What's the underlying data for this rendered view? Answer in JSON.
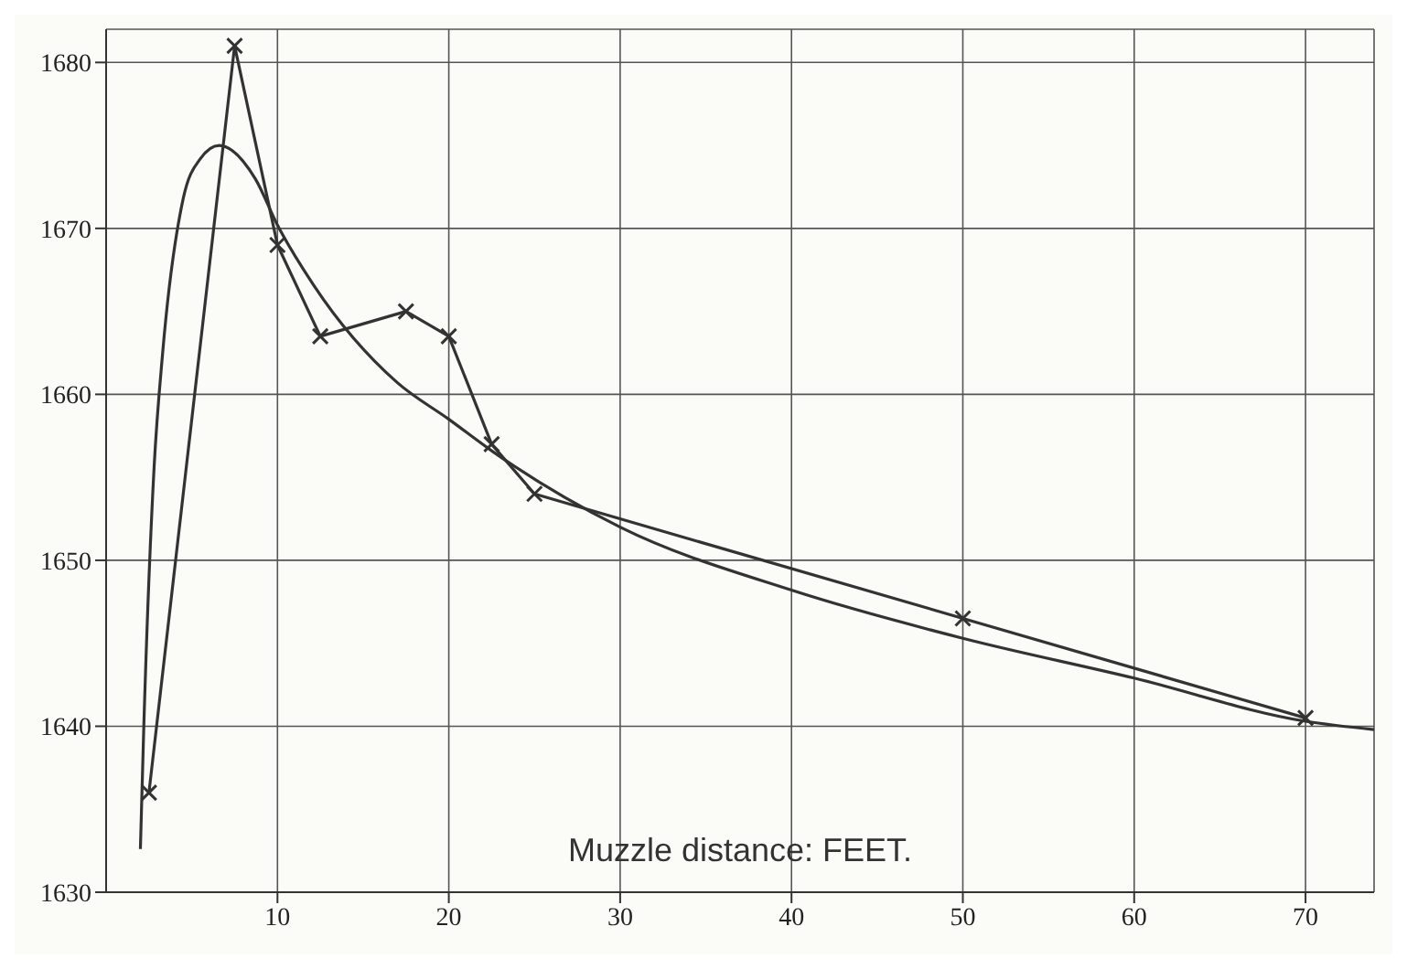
{
  "chart_data": {
    "type": "line",
    "xlabel": "Muzzle distance: FEET.",
    "xlim": [
      0,
      74
    ],
    "xticks": [
      10,
      20,
      30,
      40,
      50,
      60,
      70
    ],
    "ylim": [
      1630,
      1682
    ],
    "yticks": [
      1630,
      1640,
      1650,
      1660,
      1670,
      1680
    ],
    "grid": true,
    "legend": false,
    "series": [
      {
        "color": "#333333",
        "marker": "cross",
        "line_style": "solid",
        "x": [
          2.5,
          7.5,
          10,
          12.5,
          17.5,
          20,
          22.5,
          25,
          50,
          70
        ],
        "values": [
          1636,
          1681,
          1669,
          1663.5,
          1665,
          1663.5,
          1657,
          1654,
          1646.5,
          1640.5
        ]
      },
      {
        "color": "#333333",
        "marker": "none",
        "line_style": "solid",
        "x": [
          2,
          2.2,
          2.8,
          3.3,
          4.5,
          5.5,
          6.6,
          8.7,
          10,
          12.1,
          17,
          20,
          22.5,
          30,
          40,
          50,
          60,
          70,
          74
        ],
        "values": [
          1632.6,
          1640,
          1655.6,
          1662.5,
          1671.8,
          1674.2,
          1675,
          1673,
          1670.2,
          1666.6,
          1660.7,
          1658.5,
          1656.6,
          1652,
          1648.2,
          1645.3,
          1642.9,
          1640.3,
          1639.8
        ]
      }
    ]
  }
}
